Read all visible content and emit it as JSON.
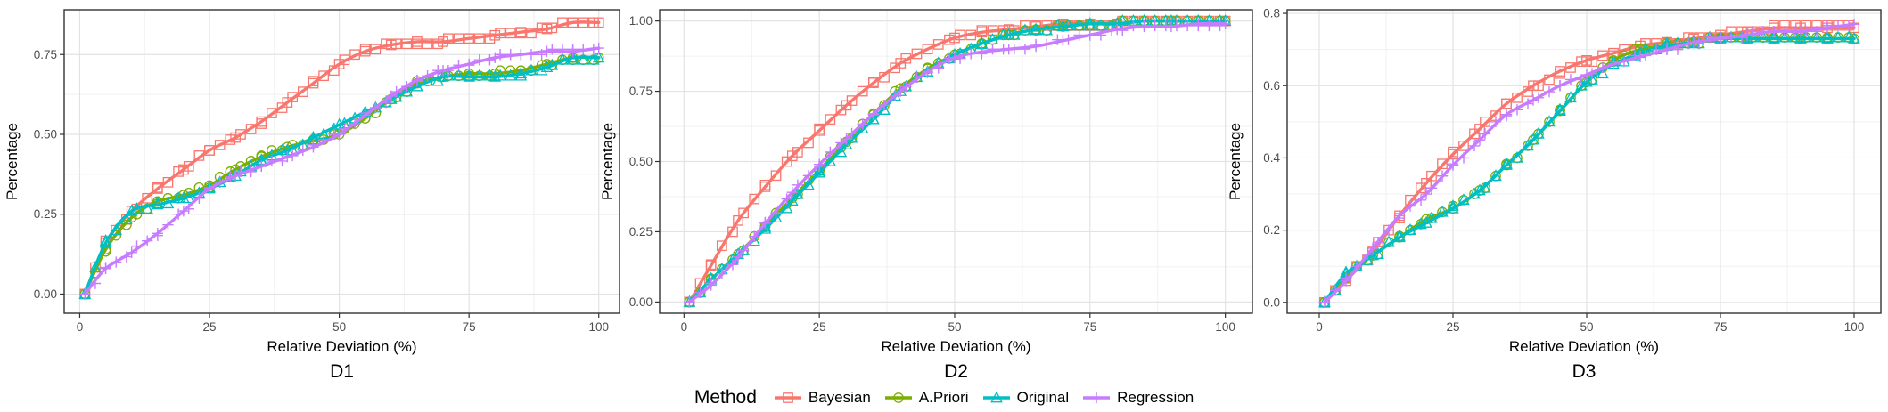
{
  "legend": {
    "title": "Method",
    "items": [
      {
        "label": "Bayesian",
        "color": "#F8766D",
        "shape": "square"
      },
      {
        "label": "A.Priori",
        "color": "#7CAE00",
        "shape": "circle"
      },
      {
        "label": "Original",
        "color": "#00BFC4",
        "shape": "triangle"
      },
      {
        "label": "Regression",
        "color": "#C77CFF",
        "shape": "plus"
      }
    ]
  },
  "chart_data": [
    {
      "type": "line",
      "title": "D1",
      "xlabel": "Relative Deviation (%)",
      "ylabel": "Percentage",
      "xlim": [
        -3,
        104
      ],
      "ylim": [
        -0.06,
        0.89
      ],
      "xticks": [
        0,
        25,
        50,
        75,
        100
      ],
      "yticks": [
        0.0,
        0.25,
        0.5,
        0.75
      ],
      "ytick_labels": [
        "0.00",
        "0.25",
        "0.50",
        "0.75"
      ],
      "grid": true,
      "x": [
        1,
        5,
        10,
        15,
        20,
        25,
        30,
        35,
        40,
        45,
        50,
        55,
        60,
        65,
        70,
        75,
        80,
        85,
        90,
        95,
        100
      ],
      "series": [
        {
          "name": "Bayesian",
          "color": "#F8766D",
          "shape": "square",
          "values": [
            0.0,
            0.16,
            0.26,
            0.33,
            0.39,
            0.45,
            0.49,
            0.54,
            0.6,
            0.66,
            0.72,
            0.76,
            0.78,
            0.79,
            0.79,
            0.8,
            0.81,
            0.82,
            0.83,
            0.85,
            0.85
          ]
        },
        {
          "name": "A.Priori",
          "color": "#7CAE00",
          "shape": "circle",
          "values": [
            0.0,
            0.14,
            0.24,
            0.29,
            0.31,
            0.34,
            0.39,
            0.43,
            0.46,
            0.48,
            0.5,
            0.55,
            0.61,
            0.66,
            0.68,
            0.69,
            0.69,
            0.7,
            0.72,
            0.74,
            0.74
          ]
        },
        {
          "name": "Original",
          "color": "#00BFC4",
          "shape": "triangle",
          "values": [
            0.0,
            0.16,
            0.26,
            0.28,
            0.3,
            0.33,
            0.37,
            0.42,
            0.45,
            0.49,
            0.53,
            0.57,
            0.61,
            0.65,
            0.68,
            0.68,
            0.68,
            0.69,
            0.71,
            0.74,
            0.74
          ]
        },
        {
          "name": "Regression",
          "color": "#C77CFF",
          "shape": "plus",
          "values": [
            0.0,
            0.08,
            0.13,
            0.19,
            0.26,
            0.33,
            0.37,
            0.4,
            0.43,
            0.46,
            0.5,
            0.56,
            0.62,
            0.67,
            0.7,
            0.72,
            0.74,
            0.75,
            0.76,
            0.76,
            0.77
          ]
        }
      ]
    },
    {
      "type": "line",
      "title": "D2",
      "xlabel": "Relative Deviation (%)",
      "ylabel": "Percentage",
      "xlim": [
        -4.5,
        105
      ],
      "ylim": [
        -0.04,
        1.04
      ],
      "xticks": [
        0,
        25,
        50,
        75,
        100
      ],
      "yticks": [
        0.0,
        0.25,
        0.5,
        0.75,
        1.0
      ],
      "ytick_labels": [
        "0.00",
        "0.25",
        "0.50",
        "0.75",
        "1.00"
      ],
      "grid": true,
      "x": [
        1,
        5,
        10,
        15,
        20,
        25,
        30,
        35,
        40,
        45,
        50,
        55,
        60,
        65,
        70,
        75,
        80,
        85,
        90,
        95,
        100
      ],
      "series": [
        {
          "name": "Bayesian",
          "color": "#F8766D",
          "shape": "square",
          "values": [
            0.0,
            0.13,
            0.29,
            0.41,
            0.52,
            0.61,
            0.7,
            0.78,
            0.85,
            0.9,
            0.94,
            0.96,
            0.97,
            0.98,
            0.99,
            0.99,
            0.99,
            1.0,
            1.0,
            1.0,
            1.0
          ]
        },
        {
          "name": "A.Priori",
          "color": "#7CAE00",
          "shape": "circle",
          "values": [
            0.0,
            0.08,
            0.17,
            0.27,
            0.37,
            0.47,
            0.57,
            0.67,
            0.76,
            0.83,
            0.88,
            0.92,
            0.95,
            0.97,
            0.98,
            0.99,
            0.99,
            1.0,
            1.0,
            1.0,
            1.0
          ]
        },
        {
          "name": "Original",
          "color": "#00BFC4",
          "shape": "triangle",
          "values": [
            0.0,
            0.08,
            0.17,
            0.26,
            0.36,
            0.46,
            0.56,
            0.65,
            0.75,
            0.82,
            0.88,
            0.92,
            0.95,
            0.97,
            0.98,
            0.99,
            0.99,
            1.0,
            1.0,
            1.0,
            1.0
          ]
        },
        {
          "name": "Regression",
          "color": "#C77CFF",
          "shape": "plus",
          "values": [
            0.0,
            0.06,
            0.16,
            0.28,
            0.39,
            0.49,
            0.58,
            0.67,
            0.75,
            0.82,
            0.87,
            0.89,
            0.9,
            0.91,
            0.93,
            0.95,
            0.97,
            0.98,
            0.98,
            0.99,
            0.99
          ]
        }
      ]
    },
    {
      "type": "line",
      "title": "D3",
      "xlabel": "Relative Deviation (%)",
      "ylabel": "Percentage",
      "xlim": [
        -6,
        105
      ],
      "ylim": [
        -0.03,
        0.81
      ],
      "xticks": [
        0,
        25,
        50,
        75,
        100
      ],
      "yticks": [
        0.0,
        0.2,
        0.4,
        0.6,
        0.8
      ],
      "ytick_labels": [
        "0.0",
        "0.2",
        "0.4",
        "0.6",
        "0.8"
      ],
      "grid": true,
      "x": [
        1,
        5,
        10,
        15,
        20,
        25,
        30,
        35,
        40,
        45,
        50,
        55,
        60,
        65,
        70,
        75,
        80,
        85,
        90,
        95,
        100
      ],
      "series": [
        {
          "name": "Bayesian",
          "color": "#F8766D",
          "shape": "square",
          "values": [
            0.0,
            0.06,
            0.14,
            0.24,
            0.33,
            0.41,
            0.48,
            0.55,
            0.6,
            0.64,
            0.67,
            0.69,
            0.71,
            0.72,
            0.73,
            0.74,
            0.75,
            0.76,
            0.76,
            0.76,
            0.76
          ]
        },
        {
          "name": "A.Priori",
          "color": "#7CAE00",
          "shape": "circle",
          "values": [
            0.0,
            0.07,
            0.13,
            0.18,
            0.23,
            0.26,
            0.31,
            0.38,
            0.45,
            0.53,
            0.61,
            0.67,
            0.7,
            0.71,
            0.72,
            0.73,
            0.73,
            0.73,
            0.73,
            0.73,
            0.73
          ]
        },
        {
          "name": "Original",
          "color": "#00BFC4",
          "shape": "triangle",
          "values": [
            0.0,
            0.08,
            0.13,
            0.18,
            0.22,
            0.26,
            0.31,
            0.38,
            0.45,
            0.53,
            0.61,
            0.66,
            0.69,
            0.71,
            0.72,
            0.73,
            0.73,
            0.73,
            0.73,
            0.73,
            0.73
          ]
        },
        {
          "name": "Regression",
          "color": "#C77CFF",
          "shape": "plus",
          "values": [
            0.0,
            0.06,
            0.15,
            0.24,
            0.3,
            0.38,
            0.45,
            0.52,
            0.56,
            0.6,
            0.63,
            0.66,
            0.68,
            0.7,
            0.72,
            0.73,
            0.74,
            0.75,
            0.75,
            0.76,
            0.77
          ]
        }
      ]
    }
  ]
}
